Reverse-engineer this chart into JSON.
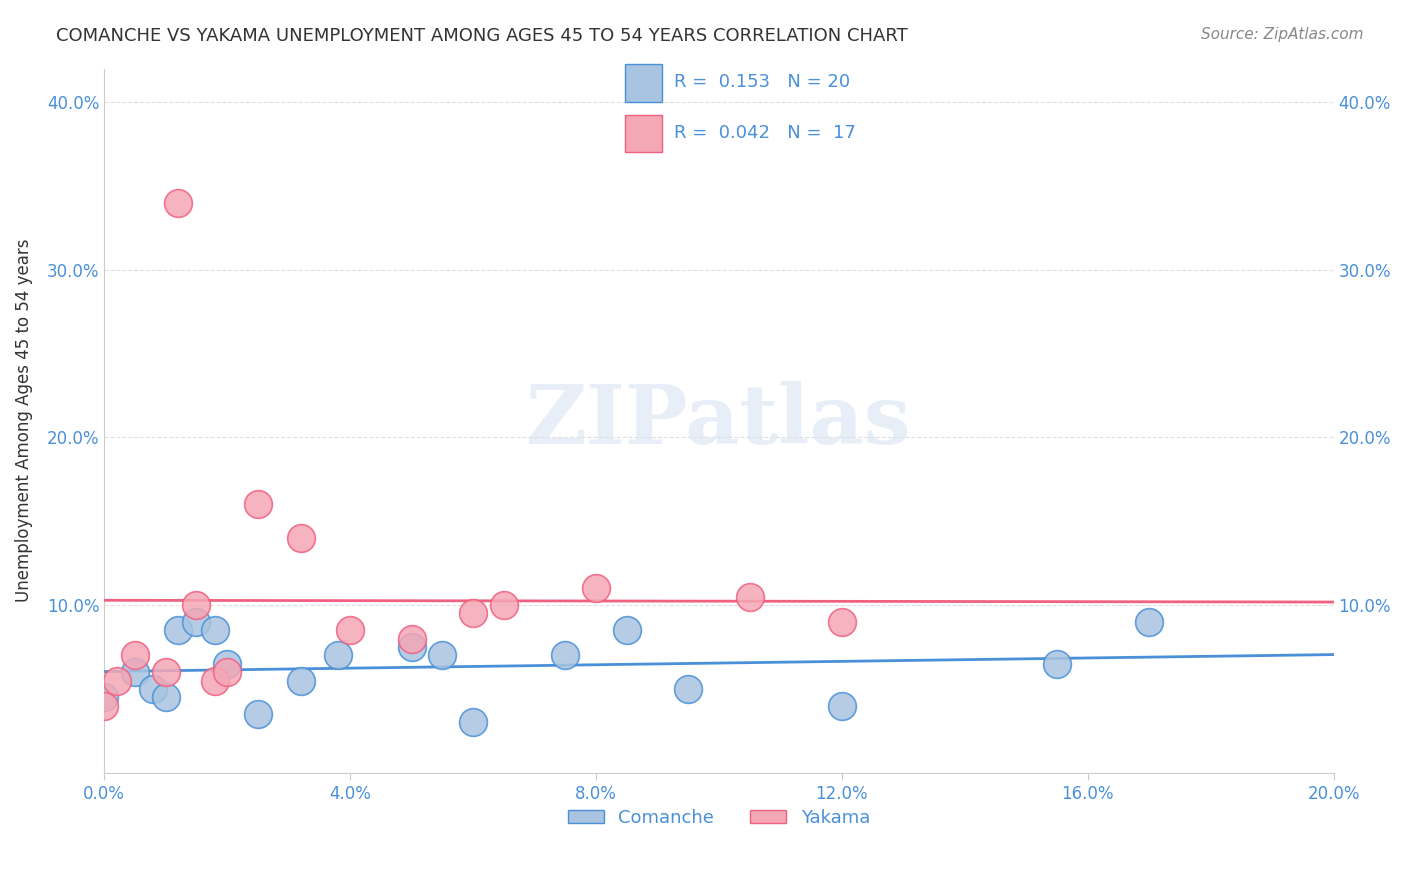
{
  "title": "COMANCHE VS YAKAMA UNEMPLOYMENT AMONG AGES 45 TO 54 YEARS CORRELATION CHART",
  "source": "Source: ZipAtlas.com",
  "xlabel": "",
  "ylabel": "Unemployment Among Ages 45 to 54 years",
  "xlim": [
    0.0,
    0.2
  ],
  "ylim": [
    0.0,
    0.42
  ],
  "xticks": [
    0.0,
    0.04,
    0.08,
    0.12,
    0.16,
    0.2
  ],
  "yticks_left": [
    0.0,
    0.1,
    0.2,
    0.3,
    0.4
  ],
  "yticks_right": [
    0.0,
    0.1,
    0.2,
    0.3,
    0.4
  ],
  "xtick_labels": [
    "0.0%",
    "4.0%",
    "8.0%",
    "12.0%",
    "16.0%",
    "20.0%"
  ],
  "ytick_labels_left": [
    "",
    "10.0%",
    "20.0%",
    "30.0%",
    "40.0%"
  ],
  "ytick_labels_right": [
    "",
    "10.0%",
    "20.0%",
    "30.0%",
    "40.0%"
  ],
  "comanche_color": "#a8c4e0",
  "yakama_color": "#f4a7b5",
  "comanche_line_color": "#4a90d9",
  "yakama_line_color": "#f06080",
  "legend_comanche_color": "#a8c4e0",
  "legend_yakama_color": "#f4a7b5",
  "R_comanche": 0.153,
  "N_comanche": 20,
  "R_yakama": 0.042,
  "N_yakama": 17,
  "comanche_x": [
    0.0,
    0.005,
    0.008,
    0.01,
    0.012,
    0.015,
    0.018,
    0.02,
    0.025,
    0.032,
    0.038,
    0.05,
    0.055,
    0.06,
    0.075,
    0.085,
    0.095,
    0.12,
    0.155,
    0.17
  ],
  "comanche_y": [
    0.045,
    0.06,
    0.05,
    0.045,
    0.085,
    0.09,
    0.085,
    0.065,
    0.035,
    0.055,
    0.07,
    0.075,
    0.07,
    0.03,
    0.07,
    0.085,
    0.05,
    0.04,
    0.065,
    0.09
  ],
  "yakama_x": [
    0.0,
    0.002,
    0.005,
    0.01,
    0.012,
    0.015,
    0.018,
    0.02,
    0.025,
    0.032,
    0.04,
    0.05,
    0.06,
    0.065,
    0.08,
    0.105,
    0.12
  ],
  "yakama_y": [
    0.04,
    0.055,
    0.07,
    0.06,
    0.34,
    0.1,
    0.055,
    0.06,
    0.16,
    0.14,
    0.085,
    0.08,
    0.095,
    0.1,
    0.11,
    0.105,
    0.09
  ],
  "watermark": "ZIPatlas",
  "background_color": "#ffffff",
  "grid_color": "#e0e0e0"
}
